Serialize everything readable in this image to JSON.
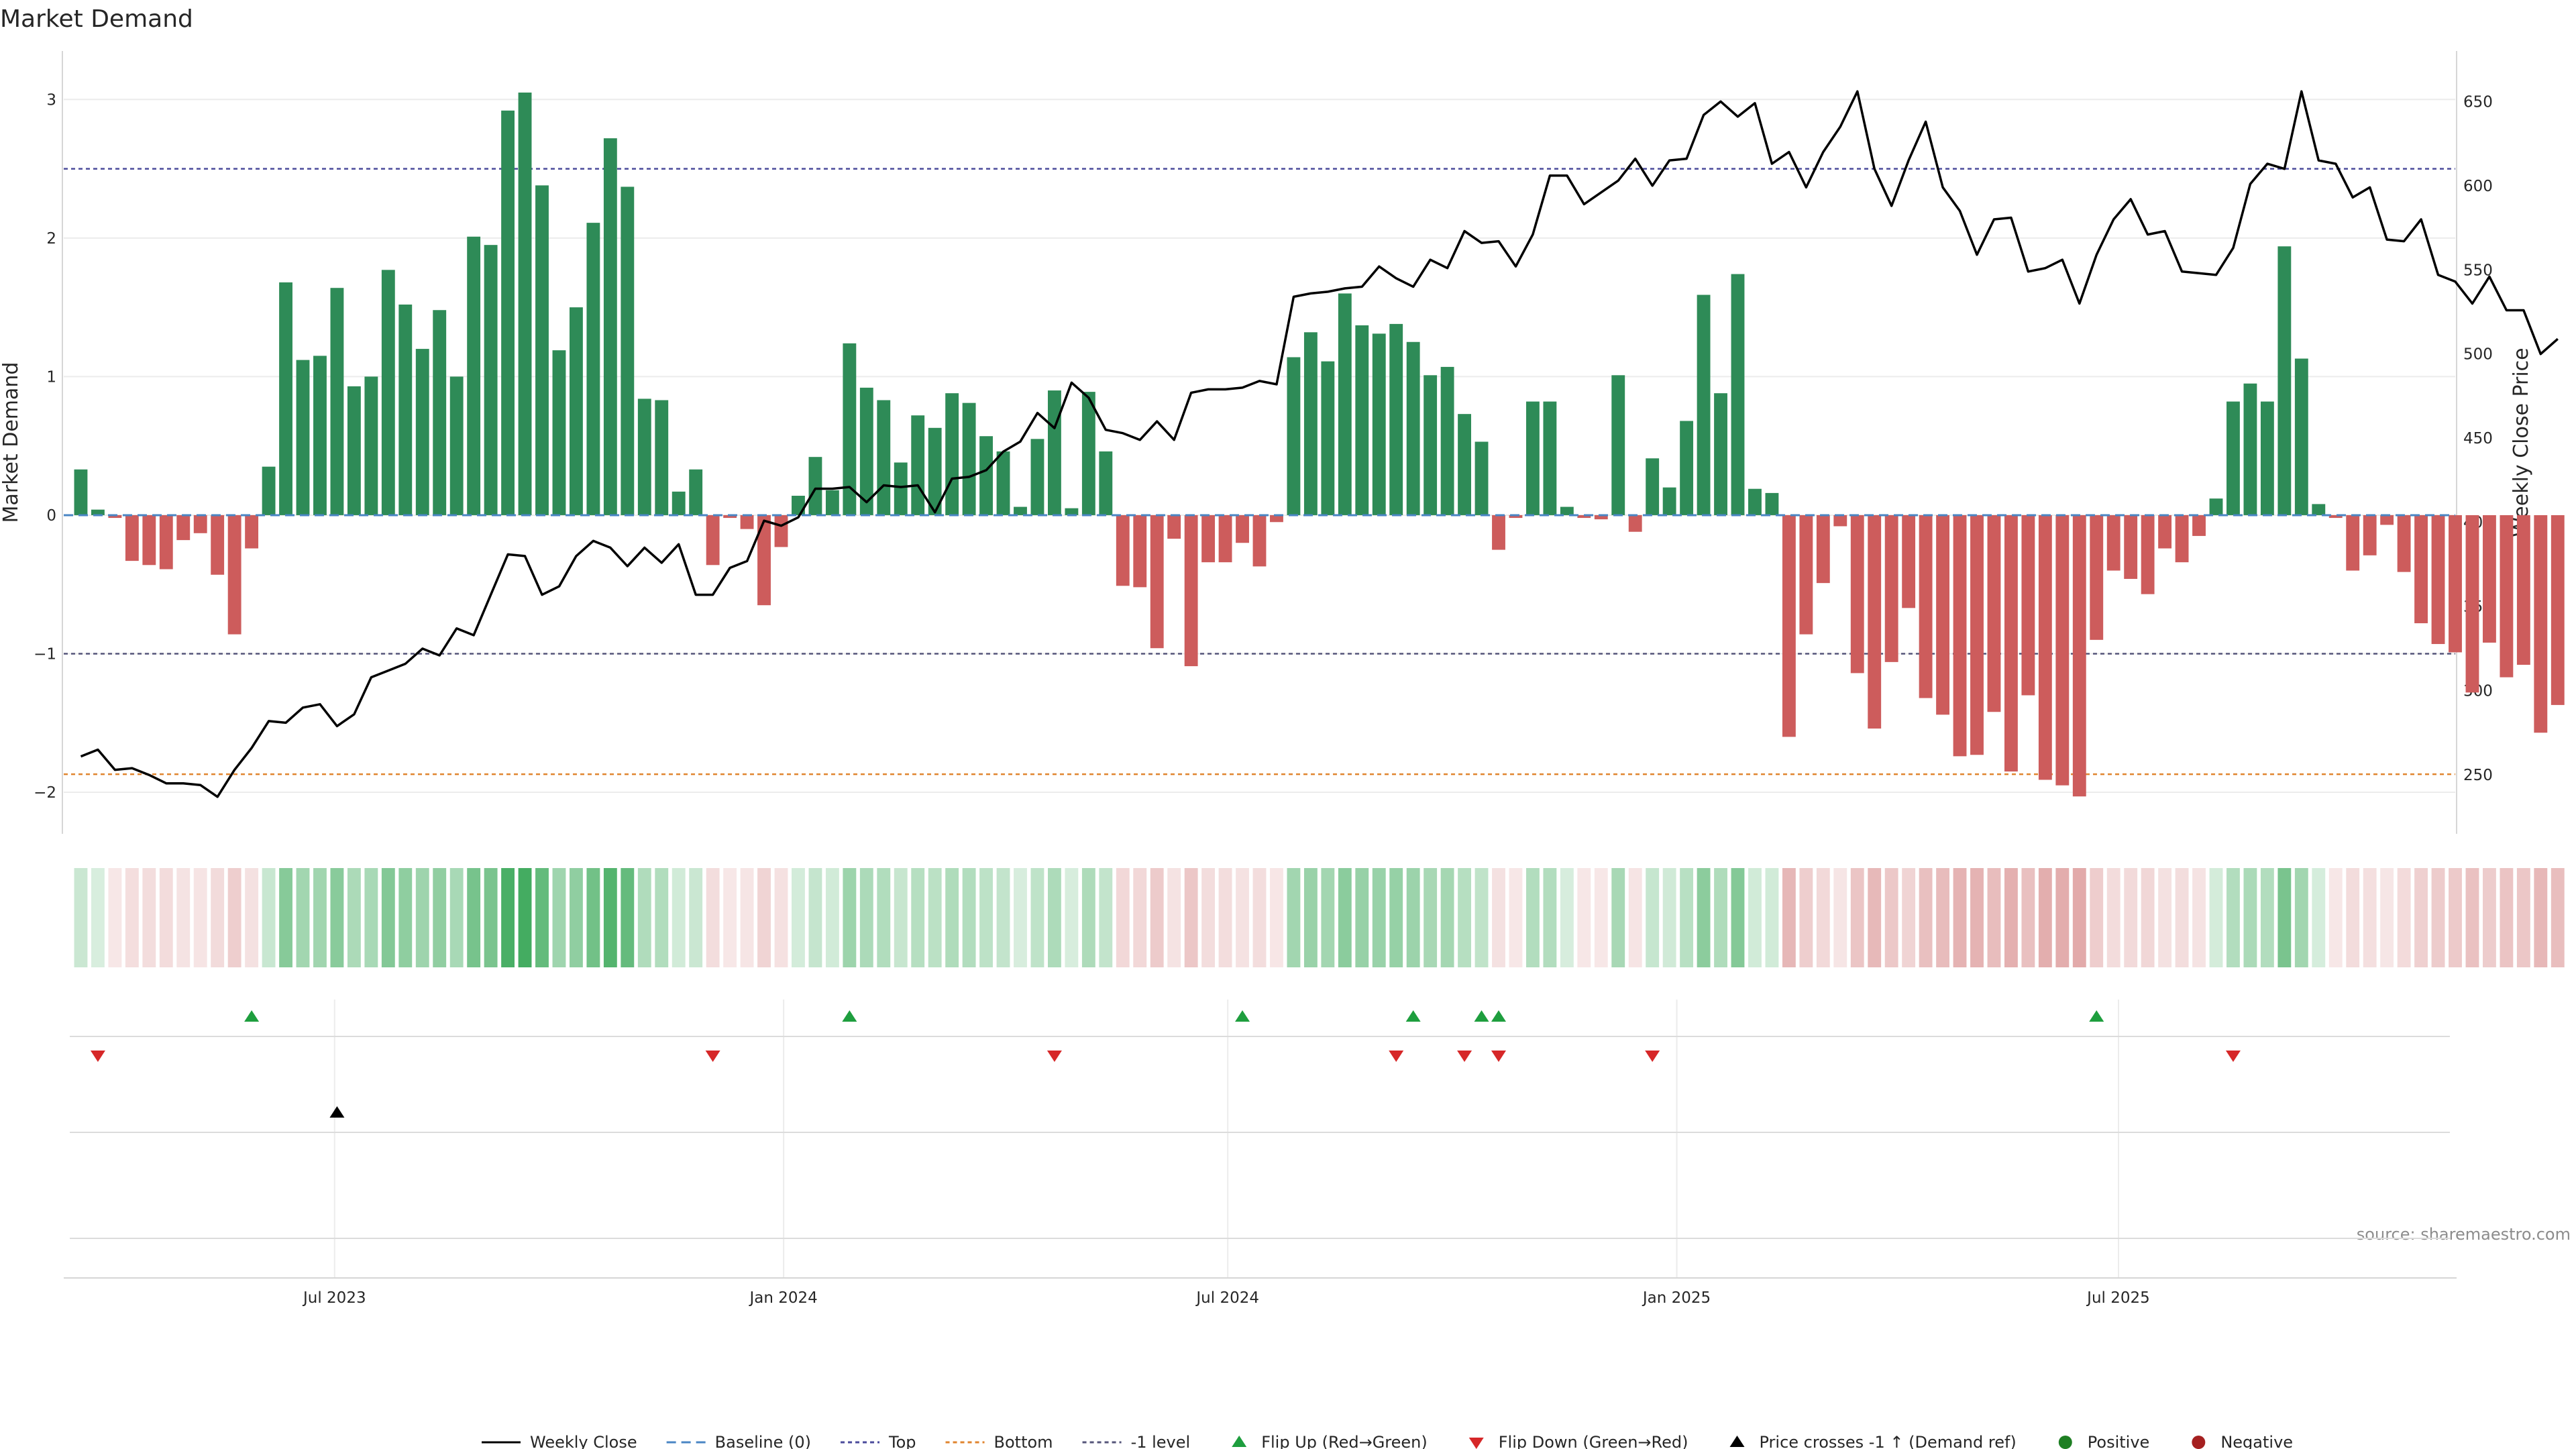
{
  "chart_data": {
    "type": "bar+line",
    "title": "Market Demand",
    "ylabel_left": "Market Demand",
    "ylabel_right": "Weekly Close Price",
    "ylim_left": [
      -2.3,
      3.35
    ],
    "yticks_left": [
      3,
      2,
      1,
      0,
      -1,
      -2
    ],
    "ytick_labels_left": [
      "3",
      "2",
      "1",
      "0",
      "−1",
      "−2"
    ],
    "ylim_right": [
      215,
      680
    ],
    "yticks_right": [
      650,
      600,
      550,
      500,
      450,
      400,
      350,
      300,
      250
    ],
    "x_domain": [
      "2023-03-12",
      "2025-11-16"
    ],
    "x_ticks": [
      {
        "date": "2023-07-01",
        "label": "Jul 2023"
      },
      {
        "date": "2024-01-01",
        "label": "Jan 2024"
      },
      {
        "date": "2024-07-01",
        "label": "Jul 2024"
      },
      {
        "date": "2025-01-01",
        "label": "Jan 2025"
      },
      {
        "date": "2025-07-01",
        "label": "Jul 2025"
      }
    ],
    "start_week": "2023-03-19",
    "weeks": 144,
    "reference_lines": {
      "top": 2.5,
      "minus1": -1.0,
      "bottom": -1.87,
      "baseline": 0
    },
    "demand": [
      0.33,
      0.04,
      -0.02,
      -0.33,
      -0.36,
      -0.39,
      -0.18,
      -0.13,
      -0.43,
      -0.86,
      -0.24,
      0.35,
      1.68,
      1.12,
      1.15,
      1.64,
      0.93,
      1.0,
      1.77,
      1.52,
      1.2,
      1.48,
      1.0,
      2.01,
      1.95,
      2.92,
      3.05,
      2.38,
      1.19,
      1.5,
      2.11,
      2.72,
      2.37,
      0.84,
      0.83,
      0.17,
      0.33,
      -0.36,
      -0.02,
      -0.1,
      -0.65,
      -0.23,
      0.14,
      0.42,
      0.18,
      1.24,
      0.92,
      0.83,
      0.38,
      0.72,
      0.63,
      0.88,
      0.81,
      0.57,
      0.46,
      0.06,
      0.55,
      0.9,
      0.05,
      0.89,
      0.46,
      -0.51,
      -0.52,
      -0.96,
      -0.17,
      -1.09,
      -0.34,
      -0.34,
      -0.2,
      -0.37,
      -0.05,
      1.14,
      1.32,
      1.11,
      1.6,
      1.37,
      1.31,
      1.38,
      1.25,
      1.01,
      1.07,
      0.73,
      0.53,
      -0.25,
      -0.02,
      0.82,
      0.82,
      0.06,
      -0.02,
      -0.03,
      1.01,
      -0.12,
      0.41,
      0.2,
      0.68,
      1.59,
      0.88,
      1.74,
      0.19,
      0.16,
      -1.6,
      -0.86,
      -0.49,
      -0.08,
      -1.14,
      -1.54,
      -1.06,
      -0.67,
      -1.32,
      -1.44,
      -1.74,
      -1.73,
      -1.42,
      -1.85,
      -1.3,
      -1.91,
      -1.95,
      -2.03,
      -0.9,
      -0.4,
      -0.46,
      -0.57,
      -0.24,
      -0.34,
      -0.15,
      0.12,
      0.82,
      0.95,
      0.82,
      1.94,
      1.13,
      0.08,
      -0.02,
      -0.4,
      -0.29,
      -0.07,
      -0.41,
      -0.78,
      -0.93,
      -0.99,
      -1.28,
      -0.92,
      -1.17,
      -1.08,
      -1.57,
      -1.37
    ],
    "weekly_close": [
      261,
      265,
      253,
      254,
      250,
      245,
      245,
      244,
      237,
      253,
      266,
      282,
      281,
      290,
      292,
      279,
      286,
      308,
      312,
      316,
      325,
      321,
      337,
      333,
      357,
      381,
      380,
      357,
      362,
      380,
      389,
      385,
      374,
      385,
      376,
      387,
      357,
      357,
      373,
      377,
      401,
      398,
      403,
      420,
      420,
      421,
      412,
      422,
      421,
      422,
      406,
      426,
      427,
      431,
      442,
      448,
      465,
      456,
      483,
      474,
      455,
      453,
      449,
      460,
      449,
      477,
      479,
      479,
      480,
      484,
      482,
      534,
      536,
      537,
      539,
      540,
      552,
      545,
      540,
      556,
      551,
      573,
      566,
      567,
      552,
      571,
      606,
      606,
      589,
      596,
      603,
      616,
      600,
      615,
      616,
      642,
      650,
      641,
      649,
      613,
      620,
      599,
      620,
      635,
      656,
      610,
      588,
      615,
      638,
      599,
      585,
      559,
      580,
      581,
      549,
      551,
      556,
      530,
      559,
      580,
      592,
      571,
      573,
      549,
      548,
      547,
      563,
      601,
      613,
      610,
      656,
      615,
      613,
      593,
      599,
      568,
      567,
      580,
      547,
      543,
      530,
      546,
      526,
      526,
      500,
      509
    ],
    "strength_strip": "one cell per week; green for positive demand, red for negative, opacity by magnitude",
    "flip_up": [
      "2023-05-28",
      "2024-01-28",
      "2024-07-07",
      "2024-09-15",
      "2024-10-13",
      "2024-10-20",
      "2025-06-22"
    ],
    "flip_down": [
      "2023-03-26",
      "2023-12-03",
      "2024-04-21",
      "2024-09-08",
      "2024-10-06",
      "2024-10-20",
      "2024-12-22",
      "2025-08-17"
    ],
    "price_cross": [
      "2023-07-02"
    ],
    "legend": [
      "Weekly Close",
      "Baseline (0)",
      "Top",
      "Bottom",
      "-1 level",
      "Flip Up (Red→Green)",
      "Flip Down (Green→Red)",
      "Price crosses -1 ↑ (Demand ref)",
      "Positive",
      "Negative"
    ],
    "source": "source: sharemaestro.com"
  },
  "colors": {
    "positive": "#2e8b57",
    "negative": "#cd5c5c",
    "line": "#000000",
    "top": "#4b4b9b",
    "bottom": "#e0852f",
    "minus1": "#55557a",
    "baseline": "#4a86c4",
    "flip_up": "#1e9e3e",
    "flip_down": "#d62728",
    "legend_positive": "#1e7f23",
    "legend_negative": "#a52020",
    "cross": "#000000",
    "grid": "#ececec",
    "spine": "#d6d6d6",
    "text": "#262626",
    "source_text": "#8c8c8c"
  }
}
